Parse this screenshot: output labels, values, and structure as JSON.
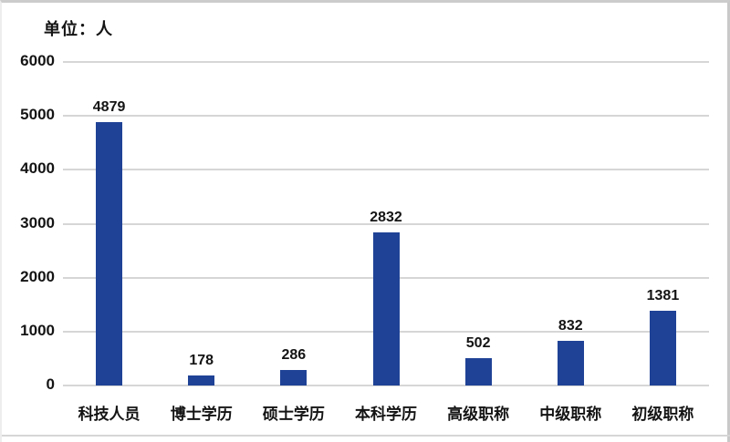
{
  "chart_data": {
    "type": "bar",
    "title": "",
    "unit_label": "单位：人",
    "categories": [
      "科技人员",
      "博士学历",
      "硕士学历",
      "本科学历",
      "高级职称",
      "中级职称",
      "初级职称"
    ],
    "values": [
      4879,
      178,
      286,
      2832,
      502,
      832,
      1381
    ],
    "value_labels": [
      "4879",
      "178",
      "286",
      "2832",
      "502",
      "832",
      "1381"
    ],
    "xlabel": "",
    "ylabel": "",
    "ylim": [
      0,
      6000
    ],
    "yticks": [
      0,
      1000,
      2000,
      3000,
      4000,
      5000,
      6000
    ],
    "grid": true,
    "legend_position": "none",
    "colors": {
      "bar_fill": "#1f4196",
      "gridline": "#d6d6d6",
      "text": "#141414",
      "background": "#ffffff",
      "frame_border": "#cccccc"
    }
  }
}
